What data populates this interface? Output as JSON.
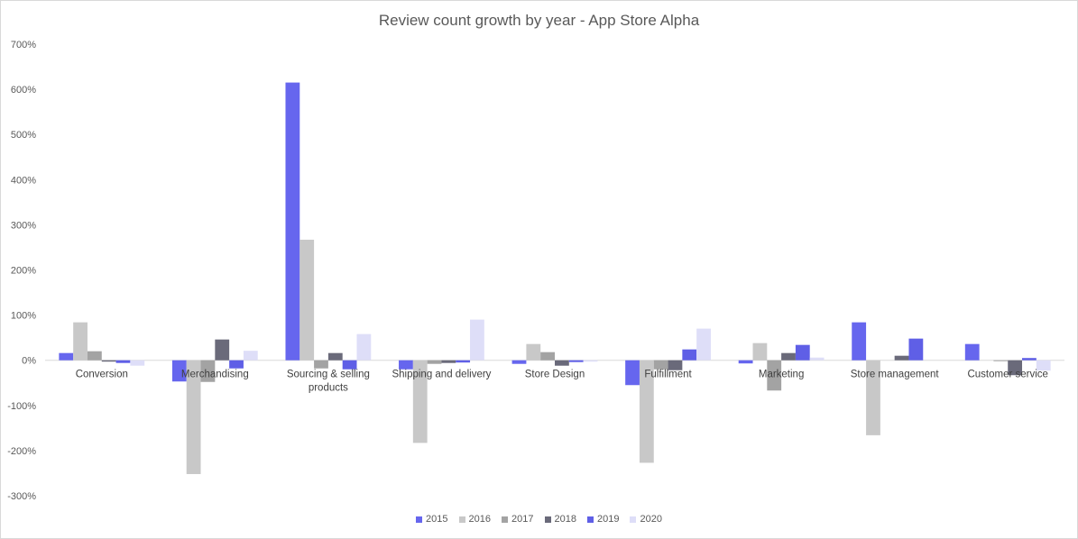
{
  "chart_data": {
    "type": "bar",
    "title": "Review count growth by year - App Store Alpha",
    "xlabel": "",
    "ylabel": "",
    "ylim": [
      -300,
      700
    ],
    "yticks": [
      -300,
      -200,
      -100,
      0,
      100,
      200,
      300,
      400,
      500,
      600,
      700
    ],
    "ytick_labels": [
      "-300%",
      "-200%",
      "-100%",
      "0%",
      "100%",
      "200%",
      "300%",
      "400%",
      "500%",
      "600%",
      "700%"
    ],
    "categories": [
      "Conversion",
      "Merchandising",
      "Sourcing & selling products",
      "Shipping and delivery",
      "Store Design",
      "Fulfillment",
      "Marketing",
      "Store management",
      "Customer service"
    ],
    "series": [
      {
        "name": "2015",
        "color": "#6666ee",
        "values": [
          16,
          -47,
          615,
          -20,
          -8,
          -55,
          -7,
          84,
          36
        ]
      },
      {
        "name": "2016",
        "color": "#c8c8c8",
        "values": [
          84,
          -252,
          267,
          -183,
          36,
          -227,
          38,
          -166,
          0
        ]
      },
      {
        "name": "2017",
        "color": "#a3a3a3",
        "values": [
          20,
          -48,
          -18,
          -8,
          18,
          -20,
          -67,
          0,
          -2
        ]
      },
      {
        "name": "2018",
        "color": "#6a6a7a",
        "values": [
          -3,
          46,
          16,
          -6,
          -12,
          -22,
          16,
          10,
          -33
        ]
      },
      {
        "name": "2019",
        "color": "#5f5fe6",
        "values": [
          -6,
          -18,
          -20,
          -5,
          -4,
          24,
          34,
          48,
          5
        ]
      },
      {
        "name": "2020",
        "color": "#dedef8",
        "values": [
          -12,
          21,
          58,
          90,
          -3,
          70,
          6,
          0,
          -23
        ]
      }
    ],
    "grid": false,
    "legend_position": "bottom"
  }
}
